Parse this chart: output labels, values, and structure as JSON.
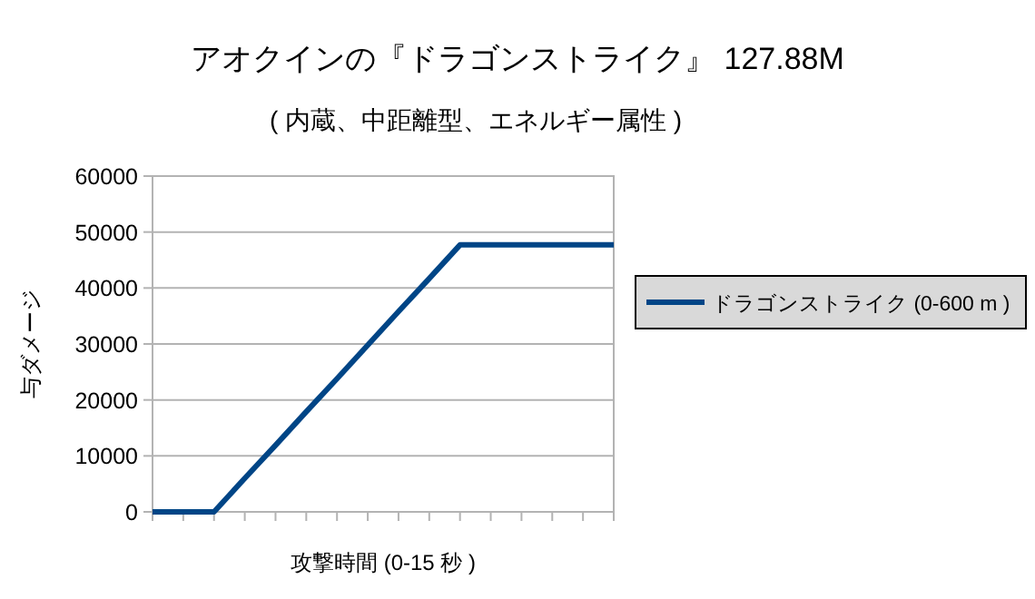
{
  "chart_data": {
    "type": "line",
    "title": "アオクインの『ドラゴンストライク』 127.88M",
    "subtitle": "( 内蔵、中距離型、エネルギー属性 )",
    "xlabel": "攻撃時間 (0-15 秒 )",
    "ylabel": "与ダメージ",
    "categories": [
      null,
      null,
      null,
      null,
      null,
      null,
      null,
      null,
      null,
      null,
      null,
      null,
      null,
      null,
      null,
      null
    ],
    "series": [
      {
        "name": "ドラゴンストライク (0-600 m )",
        "color": "#004586",
        "values": [
          0,
          0,
          0,
          6000,
          11900,
          17900,
          23800,
          29800,
          35800,
          41700,
          47700,
          47700,
          47700,
          47700,
          47700,
          47700
        ]
      }
    ],
    "ylim": [
      0,
      60000
    ],
    "yticks": [
      0,
      10000,
      20000,
      30000,
      40000,
      50000,
      60000
    ],
    "grid": "y",
    "legend": "right",
    "tick_labels": "y",
    "marker": "none",
    "line_style": "solid"
  }
}
